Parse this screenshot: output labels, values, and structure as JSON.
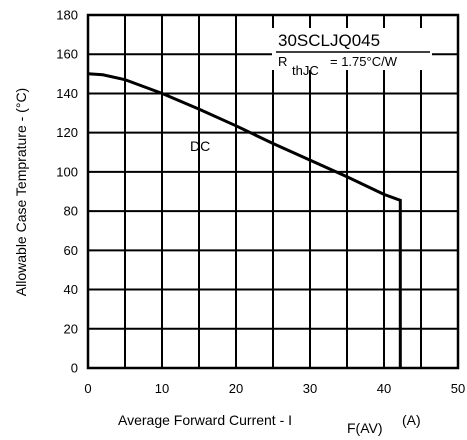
{
  "chart_data": {
    "type": "line",
    "xlabel": "Average Forward Current  - I",
    "xlabel_sub": "F(AV)",
    "xlabel_unit": "(A)",
    "ylabel": "Allowable Case Temprature - (°C)",
    "xlim": [
      0,
      50
    ],
    "ylim": [
      0,
      180
    ],
    "xticks": [
      0,
      10,
      20,
      30,
      40,
      50
    ],
    "yticks": [
      0,
      20,
      40,
      60,
      80,
      100,
      120,
      140,
      160,
      180
    ],
    "grid": true,
    "series": [
      {
        "name": "DC",
        "x": [
          0,
          2,
          5,
          10,
          15,
          20,
          25,
          30,
          35,
          40,
          42.2,
          42.2
        ],
        "y": [
          150,
          149.5,
          147,
          140,
          132,
          123.5,
          114.5,
          106,
          97.5,
          88.5,
          85.5,
          0
        ]
      }
    ],
    "annotations": {
      "part_number": "30SCLJQ045",
      "rth_symbol": "R",
      "rth_sub": "thJC",
      "rth_value": "=  1.75°C/W",
      "series_label": "DC"
    }
  }
}
